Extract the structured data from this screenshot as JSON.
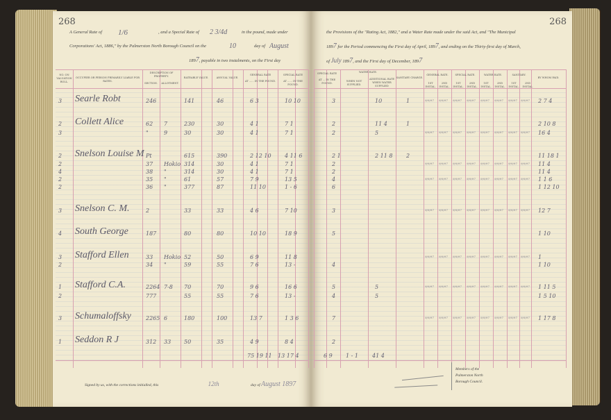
{
  "page_number": "268",
  "left_header": {
    "line1_a": "A General Rate of",
    "general_rate": "1/6",
    "line1_b": ", and a Special Rate of",
    "special_rate": "2 3/4d",
    "line1_c": "in the pound, made under",
    "line2_a": "Corporations' Act, 1886,\" by the Palmerston North Borough Council on the",
    "day": "10",
    "line2_b": "day of",
    "month": "August",
    "line3_a": "189",
    "year": "7",
    "line3_b": ", payable in two instalments, on the First day"
  },
  "right_header": {
    "line1": "the Provisions of the \"Rating Act, 1882,\" and a Water Rate made under the said Act, and \"The Municipal",
    "line2_a": "189",
    "line2_y": "7",
    "line2_b": "for the Period commencing the First day of April, 189",
    "line2_y2": "7",
    "line2_c": ", and ending on the Thirty-first day of March,",
    "line3_a": "of",
    "line3_month": "July",
    "line3_b": "189",
    "line3_y": "7",
    "line3_c": ", and the First day of December, 189",
    "line3_y2": "7"
  },
  "columns_left": {
    "valuation_roll": "No. on Valuation Roll.",
    "occupier": "Occupier or Person Primarily Liable for Rates.",
    "description": "Description of Property.",
    "section": "Section.",
    "allotment": "Allotment.",
    "rateable_value": "Rateable Value.",
    "annual_value": "Annual Value.",
    "general_rate": "General Rate",
    "general_rate_sub": "at ...... in the pound.",
    "special_rate": "Special Rate",
    "special_rate_sub": "at ...... in the pound."
  },
  "columns_right": {
    "special_rate": "Special Rate",
    "special_rate_sub": "at ... in the pound.",
    "water_rate": "Water Rate.",
    "not_supplied": "When Not Supplied.",
    "additional": "Additional Rate When Water Supplied",
    "sanitary": "Sanitary Charge.",
    "paid_general": "General Rate.",
    "paid_special": "Special Rate.",
    "paid_water": "Water Rate.",
    "paid_sanitary": "Sanitary.",
    "first_instal": "1st Instal.",
    "second_instal": "2nd Instal.",
    "by_whom": "By Whom Paid."
  },
  "rows": [
    {
      "roll": "3",
      "occupier": "Searle Robt",
      "section": "246",
      "allot": "",
      "rateable": "141",
      "annual": "46",
      "gen": "6 3",
      "spec": "10 10",
      "r_spec": "3",
      "r_water": "10",
      "r_san": "1",
      "paid": "2 7 4"
    },
    {
      "roll": "2",
      "occupier": "Collett Alice",
      "section": "62",
      "allot": "7",
      "rateable": "230",
      "annual": "30",
      "gen": "4 1",
      "spec": "7 1",
      "r_spec": "2",
      "r_water": "11 4",
      "r_san": "1",
      "paid": "2 10 8"
    },
    {
      "roll": "3",
      "occupier": "",
      "section": "\"",
      "allot": "9",
      "rateable": "30",
      "annual": "30",
      "gen": "4 1",
      "spec": "7 1",
      "r_spec": "2",
      "r_water": "5",
      "r_san": "",
      "paid": "16 4"
    },
    {
      "roll": "2",
      "occupier": "Snelson Louise M",
      "section": "Pt",
      "allot": "",
      "rateable": "615",
      "annual": "390",
      "gen": "2 12 10",
      "spec": "4 11 6",
      "r_spec": "2 1",
      "r_water": "2 11 8",
      "r_san": "2",
      "paid": "11 18 1"
    },
    {
      "roll": "2",
      "occupier": "",
      "section": "37",
      "allot": "Hokio",
      "rateable": "314",
      "annual": "30",
      "gen": "4 1",
      "spec": "7 1",
      "r_spec": "2",
      "r_water": "",
      "r_san": "",
      "paid": "11 4"
    },
    {
      "roll": "4",
      "occupier": "",
      "section": "38",
      "allot": "\"",
      "rateable": "314",
      "annual": "30",
      "gen": "4 1",
      "spec": "7 1",
      "r_spec": "2",
      "r_water": "",
      "r_san": "",
      "paid": "11 4"
    },
    {
      "roll": "2",
      "occupier": "",
      "section": "35",
      "allot": "\"",
      "rateable": "61",
      "annual": "57",
      "gen": "7 9",
      "spec": "13 5",
      "r_spec": "4",
      "r_water": "",
      "r_san": "",
      "paid": "1 1 6"
    },
    {
      "roll": "2",
      "occupier": "",
      "section": "36",
      "allot": "\"",
      "rateable": "377",
      "annual": "87",
      "gen": "11 10",
      "spec": "1 - 6",
      "r_spec": "6",
      "r_water": "",
      "r_san": "",
      "paid": "1 12 10"
    },
    {
      "roll": "3",
      "occupier": "Snelson C. M.",
      "section": "2",
      "allot": "",
      "rateable": "33",
      "annual": "33",
      "gen": "4 6",
      "spec": "7 10",
      "r_spec": "3",
      "r_water": "",
      "r_san": "",
      "paid": "12 7"
    },
    {
      "roll": "4",
      "occupier": "South George",
      "section": "187",
      "allot": "",
      "rateable": "80",
      "annual": "80",
      "gen": "10 10",
      "spec": "18 9",
      "r_spec": "5",
      "r_water": "",
      "r_san": "",
      "paid": "1 10"
    },
    {
      "roll": "3",
      "occupier": "Stafford Ellen",
      "section": "33",
      "allot": "Hokio",
      "rateable": "52",
      "annual": "50",
      "gen": "6 9",
      "spec": "11 8",
      "r_spec": "",
      "r_water": "",
      "r_san": "",
      "paid": "1"
    },
    {
      "roll": "2",
      "occupier": "",
      "section": "34",
      "allot": "\"",
      "rateable": "59",
      "annual": "55",
      "gen": "7 6",
      "spec": "13 -",
      "r_spec": "4",
      "r_water": "",
      "r_san": "",
      "paid": "1 10"
    },
    {
      "roll": "1",
      "occupier": "Stafford C.A.",
      "section": "2264",
      "allot": "7-8",
      "rateable": "70",
      "annual": "70",
      "gen": "9 6",
      "spec": "16 6",
      "r_spec": "5",
      "r_water": "5",
      "r_san": "",
      "paid": "1 11 5"
    },
    {
      "roll": "2",
      "occupier": "",
      "section": "777",
      "allot": "",
      "rateable": "55",
      "annual": "55",
      "gen": "7 6",
      "spec": "13 -",
      "r_spec": "4",
      "r_water": "5",
      "r_san": "",
      "paid": "1 5 10"
    },
    {
      "roll": "3",
      "occupier": "Schumaloffsky",
      "section": "2265",
      "allot": "6",
      "rateable": "180",
      "annual": "100",
      "gen": "13 7",
      "spec": "1 3 6",
      "r_spec": "7",
      "r_water": "",
      "r_san": "",
      "paid": "1 17 8"
    },
    {
      "roll": "1",
      "occupier": "Seddon R J",
      "section": "312",
      "allot": "33",
      "rateable": "50",
      "annual": "35",
      "gen": "4 9",
      "spec": "8 4",
      "r_spec": "2",
      "r_water": "",
      "r_san": "",
      "paid": ""
    }
  ],
  "totals": {
    "gen": "75 19 11",
    "spec": "13 17 4",
    "r_spec": "6 9",
    "r_water": "1 - 1",
    "r_add": "41 4"
  },
  "footer": {
    "signed_a": "Signed by us, with the corrections initialled, this",
    "signed_day": "12th",
    "signed_b": "day of",
    "signed_month": "August 1897",
    "members": "Members of the",
    "members2": "Palmerston North",
    "members3": "Borough Council."
  },
  "colors": {
    "rule": "#d8a0b0",
    "paper": "#f1ead2",
    "ink": "#5f5d70"
  }
}
